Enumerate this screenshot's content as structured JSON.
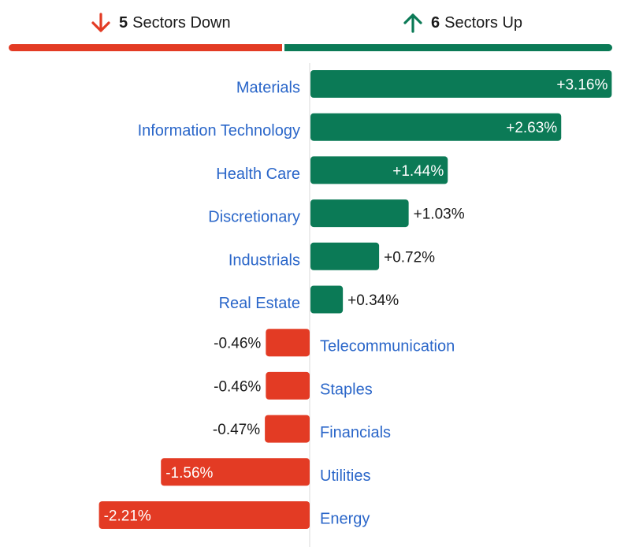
{
  "header": {
    "down": {
      "count": "5",
      "label": "Sectors Down",
      "color": "#e33b24",
      "icon": "arrow-down-icon"
    },
    "up": {
      "count": "6",
      "label": "Sectors Up",
      "color": "#0b7a56",
      "icon": "arrow-up-icon"
    }
  },
  "chart_data": {
    "type": "bar",
    "orientation": "horizontal",
    "categories": [
      "Materials",
      "Information Technology",
      "Health Care",
      "Discretionary",
      "Industrials",
      "Real Estate",
      "Telecommunication",
      "Staples",
      "Financials",
      "Utilities",
      "Energy"
    ],
    "values": [
      3.16,
      2.63,
      1.44,
      1.03,
      0.72,
      0.34,
      -0.46,
      -0.46,
      -0.47,
      -1.56,
      -2.21
    ],
    "value_labels": [
      "+3.16%",
      "+2.63%",
      "+1.44%",
      "+1.03%",
      "+0.72%",
      "+0.34%",
      "-0.46%",
      "-0.46%",
      "-0.47%",
      "-1.56%",
      "-2.21%"
    ],
    "colors": {
      "positive": "#0b7a56",
      "negative": "#e33b24",
      "label": "#2a66c9",
      "axis": "#d9d9d9"
    },
    "title": "",
    "xlabel": "",
    "ylabel": ""
  }
}
